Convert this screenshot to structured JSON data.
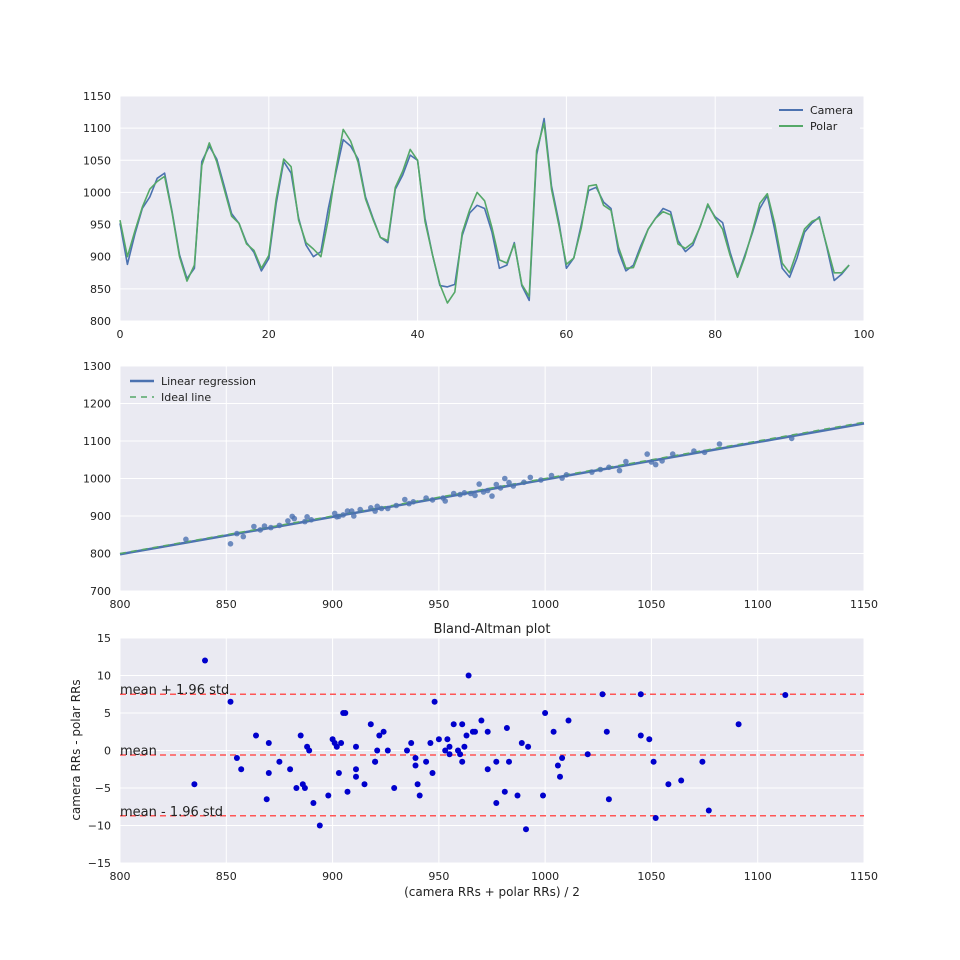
{
  "colors": {
    "background": "#eaeaf2",
    "grid": "#ffffff",
    "camera": "#4c72b0",
    "polar": "#55a868",
    "scatter": "#4c72b0",
    "ideal": "#55a868",
    "ba_points": "#0000cc",
    "ba_lines": "#ff5555"
  },
  "chart_data": [
    {
      "type": "line",
      "title": "",
      "xlabel": "",
      "ylabel": "",
      "xlim": [
        0,
        100
      ],
      "ylim": [
        800,
        1150
      ],
      "xticks": [
        "0",
        "20",
        "40",
        "60",
        "80",
        "100"
      ],
      "yticks": [
        "800",
        "850",
        "900",
        "950",
        "1000",
        "1050",
        "1100",
        "1150"
      ],
      "grid": true,
      "legend_position": "top-right",
      "series": [
        {
          "name": "Camera",
          "values": [
            952,
            888,
            935,
            975,
            993,
            1022,
            1030,
            970,
            903,
            866,
            882,
            1048,
            1072,
            1052,
            1010,
            967,
            952,
            922,
            907,
            878,
            897,
            983,
            1048,
            1030,
            960,
            918,
            900,
            908,
            975,
            1030,
            1082,
            1072,
            1052,
            993,
            960,
            930,
            922,
            1005,
            1027,
            1058,
            1050,
            960,
            903,
            855,
            853,
            857,
            933,
            968,
            980,
            975,
            938,
            882,
            887,
            922,
            855,
            832,
            1058,
            1115,
            1010,
            953,
            882,
            898,
            950,
            1003,
            1008,
            985,
            975,
            908,
            878,
            887,
            917,
            943,
            960,
            975,
            970,
            925,
            908,
            918,
            948,
            980,
            962,
            953,
            907,
            870,
            903,
            937,
            975,
            995,
            942,
            882,
            868,
            898,
            938,
            952,
            962,
            915,
            863,
            873,
            887
          ],
          "color": "#4c72b0"
        },
        {
          "name": "Polar",
          "values": [
            957,
            900,
            940,
            977,
            1005,
            1017,
            1025,
            968,
            900,
            862,
            887,
            1042,
            1077,
            1048,
            1005,
            963,
            952,
            920,
            910,
            882,
            902,
            990,
            1052,
            1040,
            957,
            922,
            912,
            900,
            958,
            1035,
            1098,
            1080,
            1047,
            990,
            958,
            930,
            925,
            1008,
            1033,
            1067,
            1050,
            955,
            903,
            857,
            828,
            845,
            937,
            973,
            1000,
            987,
            945,
            895,
            890,
            920,
            857,
            838,
            1065,
            1108,
            1005,
            948,
            888,
            898,
            945,
            1010,
            1012,
            980,
            972,
            915,
            882,
            883,
            913,
            943,
            960,
            970,
            965,
            920,
            913,
            922,
            947,
            982,
            960,
            943,
            902,
            868,
            900,
            940,
            983,
            998,
            952,
            890,
            875,
            908,
            943,
            955,
            960,
            917,
            875,
            875,
            887
          ],
          "color": "#55a868"
        }
      ]
    },
    {
      "type": "scatter",
      "title": "",
      "xlabel": "",
      "ylabel": "",
      "xlim": [
        800,
        1150
      ],
      "ylim": [
        700,
        1300
      ],
      "xticks": [
        "800",
        "850",
        "900",
        "950",
        "1000",
        "1050",
        "1100",
        "1150"
      ],
      "yticks": [
        "700",
        "800",
        "900",
        "1000",
        "1100",
        "1200",
        "1300"
      ],
      "grid": true,
      "legend_position": "top-left",
      "legend": [
        "Linear regression",
        "Ideal line"
      ],
      "regression_line": {
        "x": [
          800,
          1150
        ],
        "y": [
          798,
          1147
        ],
        "color": "#4c72b0"
      },
      "ideal_line": {
        "x": [
          800,
          1150
        ],
        "y": [
          800,
          1150
        ],
        "color": "#55a868"
      },
      "points": {
        "x": [
          831,
          852,
          855,
          858,
          863,
          866,
          868,
          871,
          875,
          879,
          881,
          882,
          887,
          888,
          890,
          901,
          902,
          903,
          905,
          907,
          909,
          910,
          913,
          918,
          920,
          921,
          923,
          926,
          930,
          934,
          936,
          938,
          944,
          947,
          952,
          953,
          957,
          960,
          962,
          965,
          967,
          969,
          971,
          973,
          975,
          977,
          979,
          981,
          983,
          985,
          990,
          993,
          998,
          1003,
          1008,
          1010,
          1022,
          1026,
          1030,
          1035,
          1038,
          1048,
          1050,
          1052,
          1055,
          1060,
          1070,
          1075,
          1082,
          1116
        ],
        "y": [
          838,
          826,
          853,
          845,
          872,
          863,
          873,
          869,
          875,
          887,
          899,
          893,
          885,
          898,
          890,
          907,
          898,
          899,
          903,
          913,
          913,
          900,
          917,
          922,
          913,
          926,
          920,
          920,
          928,
          944,
          933,
          938,
          948,
          943,
          948,
          940,
          960,
          957,
          962,
          960,
          955,
          985,
          964,
          968,
          953,
          984,
          975,
          1000,
          989,
          980,
          990,
          1003,
          996,
          1008,
          1001,
          1010,
          1017,
          1024,
          1030,
          1021,
          1045,
          1065,
          1044,
          1037,
          1047,
          1065,
          1073,
          1070,
          1092,
          1107
        ],
        "color": "#4c72b0"
      }
    },
    {
      "type": "scatter",
      "title": "Bland-Altman plot",
      "xlabel": "(camera RRs + polar RRs) / 2",
      "ylabel": "camera RRs - polar RRs",
      "xlim": [
        800,
        1150
      ],
      "ylim": [
        -15,
        15
      ],
      "xticks": [
        "800",
        "850",
        "900",
        "950",
        "1000",
        "1050",
        "1100",
        "1150"
      ],
      "yticks": [
        "−15",
        "−10",
        "−5",
        "0",
        "5",
        "10",
        "15"
      ],
      "grid": true,
      "annotations": [
        "mean + 1.96 std",
        "mean",
        "mean - 1.96 std"
      ],
      "reference_lines": [
        7.5,
        -0.6,
        -8.7
      ],
      "points": {
        "x": [
          835,
          840,
          852,
          855,
          857,
          864,
          869,
          870,
          870,
          875,
          880,
          883,
          885,
          886,
          887,
          888,
          889,
          891,
          894,
          898,
          900,
          901,
          902,
          903,
          904,
          905,
          906,
          907,
          911,
          911,
          911,
          915,
          918,
          920,
          920,
          921,
          922,
          924,
          926,
          929,
          935,
          937,
          939,
          939,
          940,
          941,
          944,
          946,
          947,
          948,
          950,
          953,
          954,
          955,
          955,
          957,
          959,
          960,
          961,
          961,
          962,
          963,
          964,
          966,
          967,
          970,
          973,
          973,
          977,
          977,
          981,
          982,
          983,
          987,
          989,
          991,
          992,
          999,
          1000,
          1004,
          1006,
          1007,
          1008,
          1011,
          1020,
          1027,
          1029,
          1030,
          1045,
          1045,
          1049,
          1051,
          1052,
          1058,
          1064,
          1074,
          1077,
          1091,
          1113
        ],
        "y": [
          -4.5,
          12,
          6.5,
          -1,
          -2.5,
          2,
          -6.5,
          1,
          -3,
          -1.5,
          -2.5,
          -5,
          2,
          -4.5,
          -5,
          0.5,
          0,
          -7,
          -10,
          -6,
          1.5,
          1,
          0.5,
          -3,
          1,
          5,
          5,
          -5.5,
          0.5,
          -3.5,
          -2.5,
          -4.5,
          3.5,
          -1.5,
          -1.5,
          0,
          2,
          2.5,
          0,
          -5,
          0,
          1,
          -1,
          -2,
          -4.5,
          -6,
          -1.5,
          1,
          -3,
          6.5,
          1.5,
          0,
          1.5,
          -0.5,
          0.5,
          3.5,
          0,
          -0.5,
          -1.5,
          3.5,
          0.5,
          2,
          10,
          2.5,
          2.5,
          4,
          -2.5,
          2.5,
          -7,
          -1.5,
          -5.5,
          3,
          -1.5,
          -6,
          1,
          -10.5,
          0.5,
          -6,
          5,
          2.5,
          -2,
          -3.5,
          -1,
          4,
          -0.5,
          7.5,
          2.5,
          -6.5,
          7.5,
          2,
          1.5,
          -1.5,
          -9,
          -4.5,
          -4,
          -1.5,
          -8,
          3.5,
          7.4
        ],
        "color": "#0000cc"
      }
    }
  ]
}
